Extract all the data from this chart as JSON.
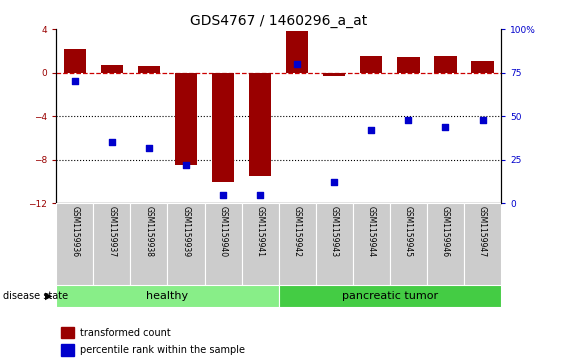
{
  "title": "GDS4767 / 1460296_a_at",
  "samples": [
    "GSM1159936",
    "GSM1159937",
    "GSM1159938",
    "GSM1159939",
    "GSM1159940",
    "GSM1159941",
    "GSM1159942",
    "GSM1159943",
    "GSM1159944",
    "GSM1159945",
    "GSM1159946",
    "GSM1159947"
  ],
  "bar_values": [
    2.2,
    0.7,
    0.6,
    -8.5,
    -10.0,
    -9.5,
    3.8,
    -0.3,
    1.5,
    1.4,
    1.5,
    1.1
  ],
  "dot_values_pct": [
    70,
    35,
    32,
    22,
    5,
    5,
    80,
    12,
    42,
    48,
    44,
    48
  ],
  "ylim_left": [
    -12,
    4
  ],
  "ylim_right": [
    0,
    100
  ],
  "yticks_left": [
    -12,
    -8,
    -4,
    0,
    4
  ],
  "yticks_right": [
    0,
    25,
    50,
    75,
    100
  ],
  "bar_color": "#990000",
  "dot_color": "#0000cc",
  "dashed_line_color": "#cc0000",
  "dotted_line_y": [
    -4,
    -8
  ],
  "groups": [
    {
      "label": "healthy",
      "start": 0,
      "end": 6,
      "color": "#88ee88"
    },
    {
      "label": "pancreatic tumor",
      "start": 6,
      "end": 12,
      "color": "#44cc44"
    }
  ],
  "disease_label": "disease state",
  "legend_bar": "transformed count",
  "legend_dot": "percentile rank within the sample",
  "background_color": "#ffffff",
  "title_fontsize": 10,
  "tick_fontsize": 6.5,
  "sample_fontsize": 5.5,
  "group_fontsize": 8,
  "legend_fontsize": 7
}
